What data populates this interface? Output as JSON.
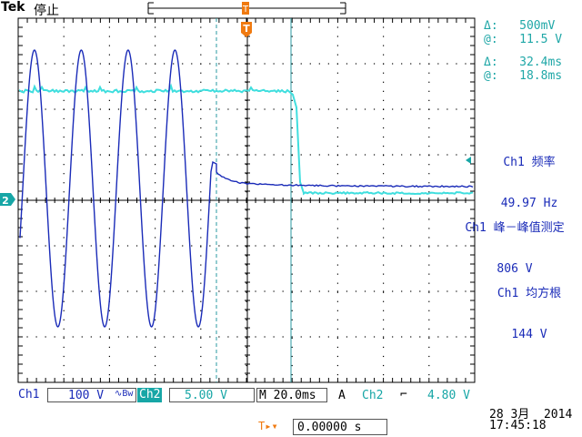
{
  "header": {
    "brand": "Tek",
    "run_state": "停止"
  },
  "cursor_readout": {
    "ch1": {
      "delta_label": "Δ:",
      "delta_value": "500mV",
      "at_label": "@:",
      "at_value": "11.5 V"
    },
    "time": {
      "delta_label": "Δ:",
      "delta_value": "32.4ms",
      "at_label": "@:",
      "at_value": "18.8ms"
    }
  },
  "measurements": [
    {
      "name": "Ch1 频率",
      "value": "49.97 Hz"
    },
    {
      "name": "Ch1 峰－峰值测定",
      "value": "806 V"
    },
    {
      "name": "Ch1 均方根",
      "value": "144 V"
    }
  ],
  "markers": {
    "trigger_top": "T",
    "ch2_ground": "2",
    "trigger_level": "◂"
  },
  "status_bar": {
    "ch1_label": "Ch1",
    "ch1_scale": "100 V",
    "ch1_bw": "∿Bw",
    "ch2_label": "Ch2",
    "ch2_scale": "5.00 V",
    "timebase": "M 20.0ms",
    "trigger_mode": "A",
    "trigger_source": "Ch2",
    "trigger_slope": "⌐",
    "trigger_level": "4.80 V"
  },
  "trigger_offset": {
    "icon": "T▸▾",
    "value": "0.00000 s"
  },
  "datetime": {
    "date": "28 3月  2014",
    "time": "17:45:18"
  },
  "colors": {
    "ch1": "#1a2bb8",
    "ch2": "#2fd6d6",
    "cursor": "#2a9aa0",
    "grid": "#000000",
    "trigger_marker": "#f07a10"
  }
}
